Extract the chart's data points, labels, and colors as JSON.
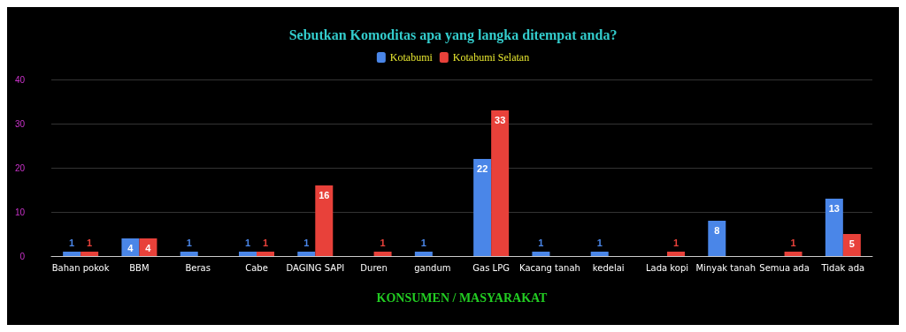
{
  "chart_data": {
    "type": "bar",
    "title": "Sebutkan Komoditas apa yang langka ditempat anda?",
    "xlabel": "KONSUMEN / MASYARAKAT",
    "categories": [
      "Bahan pokok",
      "BBM",
      "Beras",
      "Cabe",
      "DAGING SAPI",
      "Duren",
      "gandum",
      "Gas LPG",
      "Kacang tanah",
      "kedelai",
      "Lada kopi",
      "Minyak tanah",
      "Semua ada",
      "Tidak ada"
    ],
    "series": [
      {
        "name": "Kotabumi",
        "color": "#4a86e8",
        "values": [
          1,
          4,
          1,
          1,
          1,
          null,
          1,
          22,
          1,
          1,
          null,
          8,
          null,
          13
        ]
      },
      {
        "name": "Kotabumi Selatan",
        "color": "#e8413a",
        "values": [
          1,
          4,
          null,
          1,
          16,
          1,
          null,
          33,
          null,
          null,
          1,
          null,
          1,
          5
        ]
      }
    ],
    "ylim": [
      0,
      40
    ],
    "yticks": [
      0,
      10,
      20,
      30,
      40
    ],
    "grid": "y",
    "legend": "top",
    "data_labels": true
  }
}
